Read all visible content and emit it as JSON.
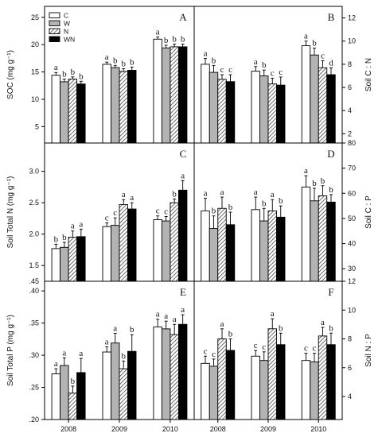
{
  "chart_data": {
    "type": "bar",
    "categories": [
      "2008",
      "2009",
      "2010"
    ],
    "legend": [
      {
        "name": "C",
        "pattern": "white"
      },
      {
        "name": "W",
        "pattern": "gray"
      },
      {
        "name": "N",
        "pattern": "hatched"
      },
      {
        "name": "WN",
        "pattern": "black"
      }
    ],
    "colors": {
      "C": "#ffffff",
      "W": "#b0b0b0",
      "N": "#8c8c8c",
      "WN": "#000000",
      "axis": "#000000"
    },
    "grid": false,
    "legend_position": "top-left",
    "panels": [
      {
        "letter": "A",
        "ylabel": "SOC (mg g⁻¹)",
        "ylabel_side": "left",
        "ylim": [
          2,
          27
        ],
        "yticks": [
          5,
          10,
          15,
          20,
          25
        ],
        "ytick_labels": [
          "5",
          "10",
          "15",
          "20",
          "25"
        ],
        "series": [
          {
            "name": "C",
            "values": [
              14.4,
              16.4,
              21.0
            ],
            "errors": [
              0.5,
              0.4,
              0.4
            ],
            "sig": [
              "a",
              "a",
              "a"
            ]
          },
          {
            "name": "W",
            "values": [
              13.2,
              15.8,
              19.4
            ],
            "errors": [
              0.5,
              0.4,
              0.5
            ],
            "sig": [
              "b",
              "b",
              "b"
            ]
          },
          {
            "name": "N",
            "values": [
              13.7,
              15.1,
              19.6
            ],
            "errors": [
              0.4,
              0.5,
              0.5
            ],
            "sig": [
              "b",
              "b",
              "b"
            ]
          },
          {
            "name": "WN",
            "values": [
              12.8,
              15.3,
              19.6
            ],
            "errors": [
              0.5,
              0.6,
              0.5
            ],
            "sig": [
              "b",
              "b",
              "b"
            ]
          }
        ]
      },
      {
        "letter": "B",
        "ylabel": "Soil C : N",
        "ylabel_side": "right",
        "ylim": [
          1.2,
          13.0
        ],
        "yticks": [
          2,
          4,
          6,
          8,
          10,
          12
        ],
        "ytick_labels": [
          "2",
          "4",
          "6",
          "8",
          "10",
          "12"
        ],
        "series": [
          {
            "name": "C",
            "values": [
              8.0,
              7.4,
              9.6
            ],
            "errors": [
              0.5,
              0.4,
              0.4
            ],
            "sig": [
              "a",
              "a",
              "a"
            ]
          },
          {
            "name": "W",
            "values": [
              7.3,
              7.0,
              8.8
            ],
            "errors": [
              0.6,
              0.5,
              0.6
            ],
            "sig": [
              "b",
              "b",
              "b"
            ]
          },
          {
            "name": "N",
            "values": [
              6.7,
              6.3,
              7.7
            ],
            "errors": [
              0.4,
              0.5,
              0.6
            ],
            "sig": [
              "c",
              "c",
              "c"
            ]
          },
          {
            "name": "WN",
            "values": [
              6.5,
              6.2,
              7.1
            ],
            "errors": [
              0.6,
              0.7,
              0.6
            ],
            "sig": [
              "c",
              "c",
              "d"
            ]
          }
        ]
      },
      {
        "letter": "C",
        "ylabel": "Soil Total N (mg g⁻¹)",
        "ylabel_side": "left",
        "ylim": [
          1.25,
          3.45
        ],
        "yticks": [
          1.5,
          2.0,
          2.5,
          3.0
        ],
        "ytick_labels": [
          "1.5",
          "2.0",
          "2.5",
          "3.0"
        ],
        "bottom_label": ".45",
        "series": [
          {
            "name": "C",
            "values": [
              1.77,
              2.12,
              2.23
            ],
            "errors": [
              0.07,
              0.06,
              0.06
            ],
            "sig": [
              "b",
              "c",
              "c"
            ]
          },
          {
            "name": "W",
            "values": [
              1.79,
              2.14,
              2.21
            ],
            "errors": [
              0.08,
              0.12,
              0.07
            ],
            "sig": [
              "b",
              "c",
              "c"
            ]
          },
          {
            "name": "N",
            "values": [
              1.95,
              2.47,
              2.5
            ],
            "errors": [
              0.1,
              0.08,
              0.06
            ],
            "sig": [
              "a",
              "a",
              "b"
            ]
          },
          {
            "name": "WN",
            "values": [
              1.96,
              2.4,
              2.7
            ],
            "errors": [
              0.12,
              0.1,
              0.15
            ],
            "sig": [
              "a",
              "a",
              "a"
            ]
          }
        ]
      },
      {
        "letter": "D",
        "ylabel": "Soil C : P",
        "ylabel_side": "right",
        "ylim": [
          25,
          80
        ],
        "yticks": [
          30,
          40,
          50,
          60,
          70,
          80
        ],
        "ytick_labels": [
          "30",
          "40",
          "50",
          "60",
          "70",
          "80"
        ],
        "series": [
          {
            "name": "C",
            "values": [
              53,
              53.5,
              62.5
            ],
            "errors": [
              5,
              5,
              4.5
            ],
            "sig": [
              "a",
              "a",
              "a"
            ]
          },
          {
            "name": "W",
            "values": [
              46,
              49,
              57
            ],
            "errors": [
              5,
              5,
              5
            ],
            "sig": [
              "b",
              "b",
              "b"
            ]
          },
          {
            "name": "N",
            "values": [
              54,
              53,
              59
            ],
            "errors": [
              4.5,
              4.5,
              4
            ],
            "sig": [
              "a",
              "a",
              "b"
            ]
          },
          {
            "name": "WN",
            "values": [
              47.5,
              50.5,
              56.5
            ],
            "errors": [
              5,
              4.5,
              3
            ],
            "sig": [
              "b",
              "b",
              "b"
            ]
          }
        ]
      },
      {
        "letter": "E",
        "ylabel": "Soil Total P (mg g⁻¹)",
        "ylabel_side": "left",
        "ylim": [
          0.2,
          0.415
        ],
        "yticks": [
          0.2,
          0.25,
          0.3,
          0.35,
          0.4
        ],
        "ytick_labels": [
          ".20",
          ".25",
          ".30",
          ".35",
          ".40"
        ],
        "series": [
          {
            "name": "C",
            "values": [
              0.271,
              0.305,
              0.344
            ],
            "errors": [
              0.008,
              0.008,
              0.012
            ],
            "sig": [
              "a",
              "a",
              "a"
            ]
          },
          {
            "name": "W",
            "values": [
              0.284,
              0.319,
              0.341
            ],
            "errors": [
              0.012,
              0.015,
              0.012
            ],
            "sig": [
              "a",
              "a",
              "a"
            ]
          },
          {
            "name": "N",
            "values": [
              0.241,
              0.279,
              0.332
            ],
            "errors": [
              0.011,
              0.012,
              0.016
            ],
            "sig": [
              "b",
              "b",
              "a"
            ]
          },
          {
            "name": "WN",
            "values": [
              0.273,
              0.306,
              0.348
            ],
            "errors": [
              0.022,
              0.026,
              0.015
            ],
            "sig": [
              "a",
              "b",
              "a"
            ]
          }
        ]
      },
      {
        "letter": "F",
        "ylabel": "Soil N : P",
        "ylabel_side": "right",
        "ylim": [
          2.4,
          12.0
        ],
        "yticks": [
          4,
          6,
          8,
          10,
          12
        ],
        "ytick_labels": [
          "4",
          "6",
          "8",
          "10",
          "12"
        ],
        "series": [
          {
            "name": "C",
            "values": [
              6.3,
              6.8,
              6.5
            ],
            "errors": [
              0.5,
              0.4,
              0.5
            ],
            "sig": [
              "c",
              "c",
              "c"
            ]
          },
          {
            "name": "W",
            "values": [
              6.1,
              6.5,
              6.4
            ],
            "errors": [
              0.5,
              0.6,
              0.6
            ],
            "sig": [
              "c",
              "c",
              "c"
            ]
          },
          {
            "name": "N",
            "values": [
              8.0,
              8.7,
              8.2
            ],
            "errors": [
              0.7,
              0.7,
              0.6
            ],
            "sig": [
              "a",
              "a",
              "a"
            ]
          },
          {
            "name": "WN",
            "values": [
              7.2,
              7.6,
              7.6
            ],
            "errors": [
              0.8,
              0.8,
              0.8
            ],
            "sig": [
              "b",
              "b",
              "b"
            ]
          }
        ]
      }
    ]
  }
}
